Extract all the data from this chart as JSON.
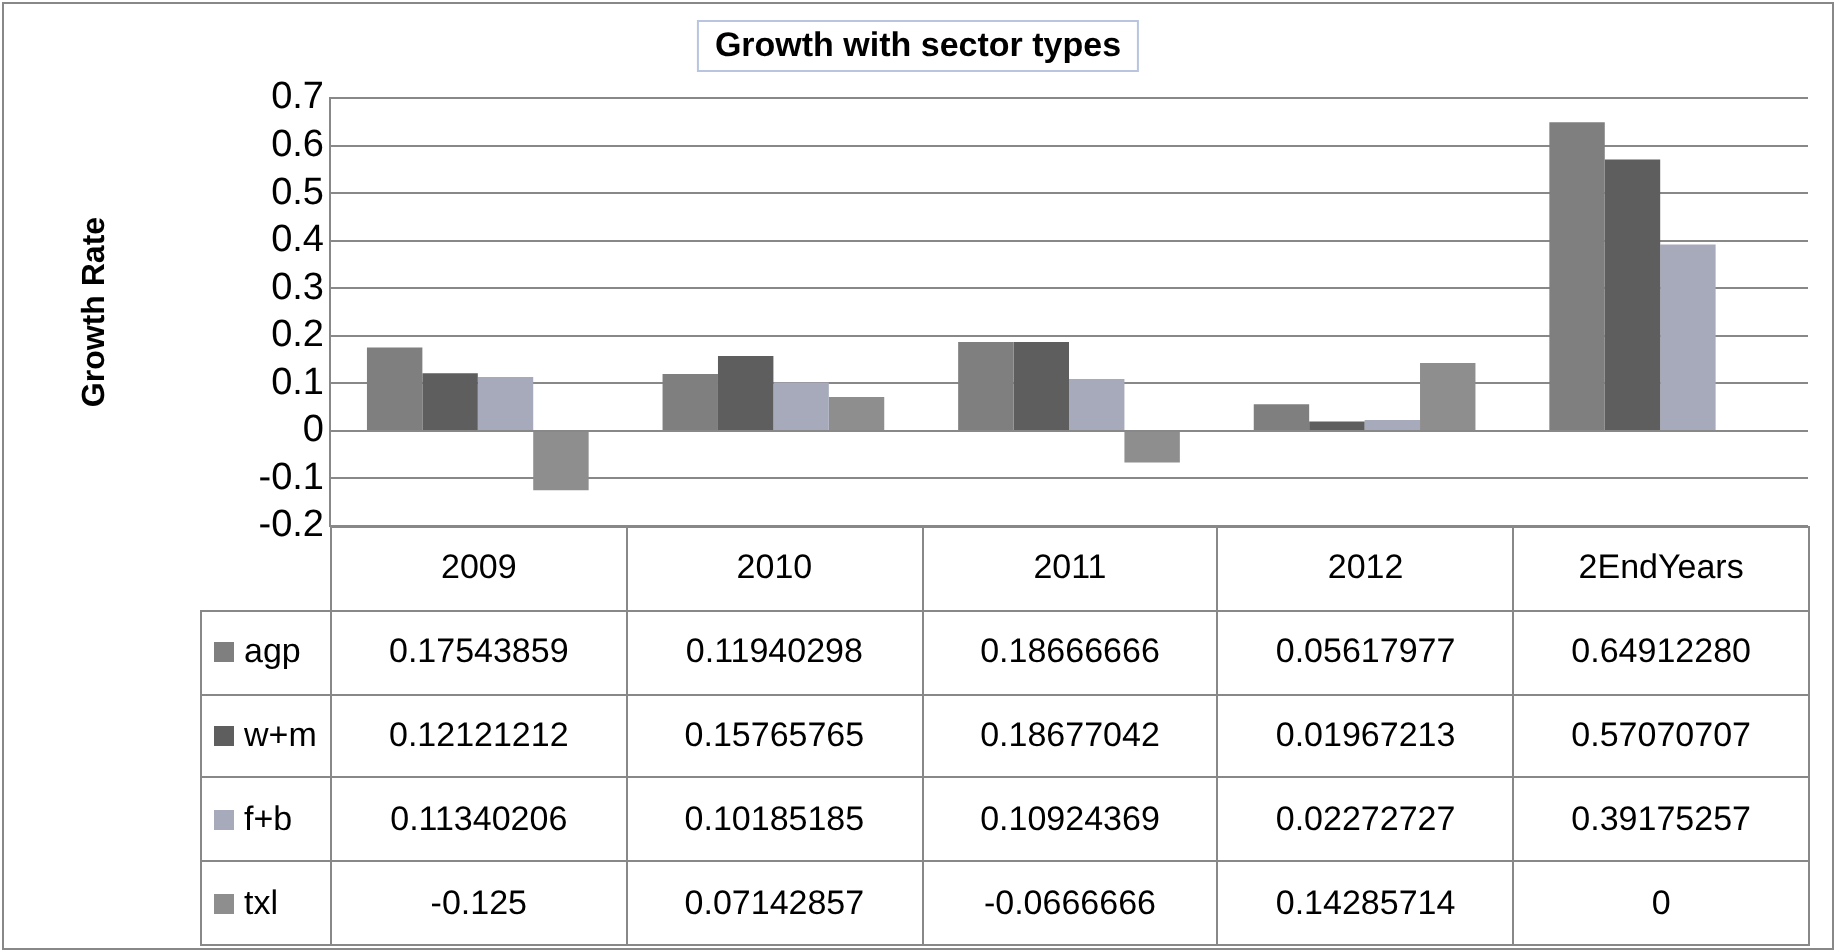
{
  "chart_data": {
    "type": "bar",
    "title": "Growth with sector types",
    "ylabel": "Growth Rate",
    "categories": [
      "2009",
      "2010",
      "2011",
      "2012",
      "2EndYears"
    ],
    "series": [
      {
        "name": "agp",
        "color": "#7f7f7f",
        "values": [
          0.17543859,
          0.11940298,
          0.18666666,
          0.05617977,
          0.6491228
        ],
        "value_labels": [
          "0.17543859",
          "0.11940298",
          "0.18666666",
          "0.05617977",
          "0.64912280"
        ]
      },
      {
        "name": "w+m",
        "color": "#5e5e5e",
        "values": [
          0.12121212,
          0.15765765,
          0.18677042,
          0.01967213,
          0.57070707
        ],
        "value_labels": [
          "0.12121212",
          "0.15765765",
          "0.18677042",
          "0.01967213",
          "0.57070707"
        ]
      },
      {
        "name": "f+b",
        "color": "#a7aabb",
        "values": [
          0.11340206,
          0.10185185,
          0.10924369,
          0.02272727,
          0.39175257
        ],
        "value_labels": [
          "0.11340206",
          "0.10185185",
          "0.10924369",
          "0.02272727",
          "0.39175257"
        ]
      },
      {
        "name": "txl",
        "color": "#8e8e8e",
        "values": [
          -0.125,
          0.07142857,
          -0.0666666,
          0.14285714,
          0
        ],
        "value_labels": [
          "-0.125",
          "0.07142857",
          "-0.0666666",
          "0.14285714",
          "0"
        ]
      }
    ],
    "ylim": [
      -0.2,
      0.7
    ],
    "yticks": [
      -0.2,
      -0.1,
      0,
      0.1,
      0.2,
      0.3,
      0.4,
      0.5,
      0.6,
      0.7
    ],
    "grid": "y",
    "legend": "bottom"
  }
}
